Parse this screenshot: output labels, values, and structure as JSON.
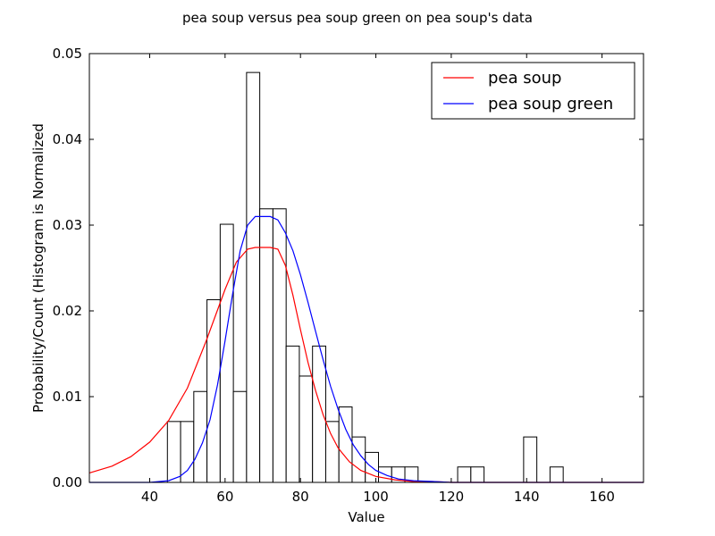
{
  "chart_data": {
    "type": "bar",
    "title": "pea soup versus pea soup green on pea soup's data",
    "xlabel": "Value",
    "ylabel": "Probability/Count (Histogram is Normalized",
    "xlim": [
      24,
      171
    ],
    "ylim": [
      0,
      0.05
    ],
    "x_ticks": [
      40,
      60,
      80,
      100,
      120,
      140,
      160
    ],
    "x_tick_labels": [
      "40",
      "60",
      "80",
      "100",
      "120",
      "140",
      "160"
    ],
    "y_ticks": [
      0.0,
      0.01,
      0.02,
      0.03,
      0.04,
      0.05
    ],
    "y_tick_labels": [
      "0.00",
      "0.01",
      "0.02",
      "0.03",
      "0.04",
      "0.05"
    ],
    "legend_position": "top-right",
    "histogram": {
      "bin_edges": [
        44.7,
        48.2,
        51.7,
        55.2,
        58.7,
        62.2,
        65.7,
        69.2,
        72.7,
        76.2,
        79.7,
        83.2,
        86.7,
        90.2,
        93.7,
        97.2,
        100.7,
        104.2,
        107.7,
        111.2,
        114.7,
        118.2,
        121.7,
        125.2,
        128.7,
        132.2,
        135.7,
        139.2,
        142.7,
        146.2,
        149.7
      ],
      "densities": [
        0.0071,
        0.0071,
        0.0106,
        0.0213,
        0.0301,
        0.0106,
        0.0478,
        0.0319,
        0.0319,
        0.0159,
        0.0124,
        0.0159,
        0.0071,
        0.0088,
        0.0053,
        0.0035,
        0.0018,
        0.0018,
        0.0018,
        0,
        0,
        0,
        0.0018,
        0.0018,
        0,
        0,
        0,
        0.0053,
        0,
        0.0018
      ],
      "edgecolor": "#000000",
      "facecolor": "#ffffff"
    },
    "series": [
      {
        "name": "pea soup",
        "color": "#ff0000",
        "x": [
          24,
          30,
          35,
          40,
          45,
          50,
          55,
          60,
          63,
          66,
          68,
          70,
          72,
          74,
          76,
          78,
          80,
          82,
          84,
          86,
          88,
          90,
          93,
          96,
          100,
          105,
          110,
          115,
          120,
          130,
          140,
          150,
          171
        ],
        "values": [
          0.0011,
          0.0019,
          0.003,
          0.0047,
          0.0072,
          0.011,
          0.0165,
          0.0225,
          0.0257,
          0.0272,
          0.0274,
          0.0274,
          0.0274,
          0.0272,
          0.0253,
          0.0218,
          0.0178,
          0.014,
          0.0107,
          0.0079,
          0.0057,
          0.004,
          0.0024,
          0.0014,
          0.0007,
          0.0003,
          0.0001,
          0.0001,
          0.0,
          0.0,
          0.0,
          0.0,
          0.0
        ]
      },
      {
        "name": "pea soup green",
        "color": "#0000ff",
        "x": [
          24,
          40,
          45,
          48,
          50,
          52,
          54,
          56,
          58,
          60,
          62,
          64,
          66,
          68,
          70,
          72,
          74,
          76,
          78,
          80,
          82,
          84,
          86,
          88,
          90,
          92,
          94,
          96,
          98,
          100,
          103,
          106,
          110,
          115,
          120,
          130,
          140,
          171
        ],
        "values": [
          0.0,
          0.0,
          0.0002,
          0.0007,
          0.0014,
          0.0027,
          0.0046,
          0.0073,
          0.0114,
          0.0165,
          0.022,
          0.027,
          0.03,
          0.031,
          0.031,
          0.031,
          0.0306,
          0.0291,
          0.027,
          0.0242,
          0.021,
          0.0176,
          0.0143,
          0.0112,
          0.0085,
          0.0062,
          0.0044,
          0.0031,
          0.0021,
          0.0014,
          0.0008,
          0.0004,
          0.0002,
          0.0001,
          0.0,
          0.0,
          0.0,
          0.0
        ]
      }
    ]
  }
}
